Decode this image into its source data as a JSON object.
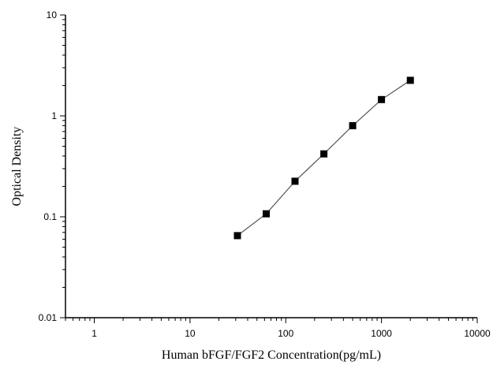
{
  "chart_data": {
    "type": "scatter",
    "xlabel": "Human bFGF/FGF2 Concentration(pg/mL)",
    "ylabel": "Optical Density",
    "x_scale": "log",
    "y_scale": "log",
    "xlim": [
      0.5,
      10000
    ],
    "ylim": [
      0.01,
      10
    ],
    "x_ticks": [
      1,
      10,
      100,
      1000,
      10000
    ],
    "x_tick_labels": [
      "1",
      "10",
      "100",
      "1000",
      "10000"
    ],
    "y_ticks": [
      0.01,
      0.1,
      1,
      10
    ],
    "y_tick_labels": [
      "0.01",
      "0.1",
      "1",
      "10"
    ],
    "grid": false,
    "series": [
      {
        "x": [
          31.25,
          62.5,
          125,
          250,
          500,
          1000,
          2000
        ],
        "y": [
          0.065,
          0.107,
          0.225,
          0.42,
          0.8,
          1.45,
          2.25
        ],
        "marker": "square",
        "line": true
      }
    ],
    "colors": {
      "marker": "#000000",
      "line": "#555555",
      "axis": "#000000"
    }
  }
}
